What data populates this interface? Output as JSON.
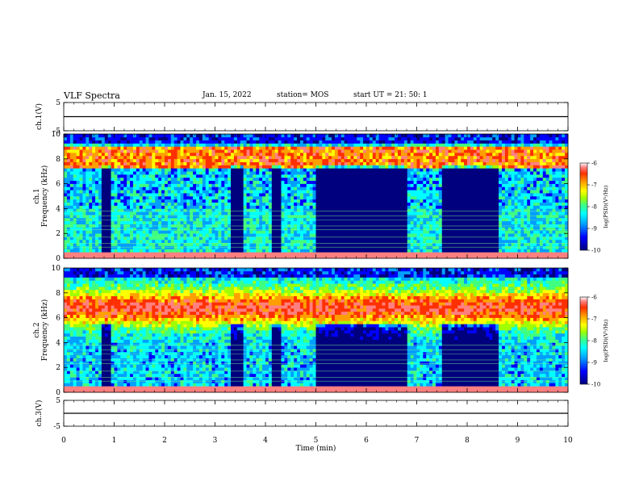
{
  "header": {
    "title": "VLF Spectra",
    "date": "Jan. 15, 2022",
    "station": "station= MOS",
    "start": "start UT =  21: 50: 1"
  },
  "colors": {
    "scale": [
      "#00007f",
      "#0000ff",
      "#00a0ff",
      "#00ffff",
      "#40ff80",
      "#a0ff00",
      "#ffff00",
      "#ffa000",
      "#ff3000",
      "#ff8080",
      "#ffffff"
    ]
  },
  "chart_data": [
    {
      "type": "line",
      "ylabel": "ch.1(V)",
      "ylim": [
        -5,
        5
      ],
      "yticks": [
        "5",
        "-5"
      ],
      "x": [
        0,
        10
      ],
      "values": [
        0,
        0
      ]
    },
    {
      "type": "heatmap",
      "ylabel_top": "ch.1",
      "ylabel": "Frequency (kHz)",
      "ylim": [
        0,
        10
      ],
      "yticks": [
        "0",
        "2",
        "4",
        "6",
        "8",
        "10"
      ],
      "colorbar": {
        "label": "log(PSD)(V²/Hz)",
        "range": [
          -10,
          -6
        ],
        "ticks": [
          "-6",
          "-7",
          "-8",
          "-9",
          "-10"
        ]
      }
    },
    {
      "type": "heatmap",
      "ylabel_top": "ch.2",
      "ylabel": "Frequency (kHz)",
      "ylim": [
        0,
        10
      ],
      "yticks": [
        "0",
        "2",
        "4",
        "6",
        "8",
        "10"
      ],
      "colorbar": {
        "label": "log(PSD)(V²/Hz)",
        "range": [
          -10,
          -6
        ],
        "ticks": [
          "-6",
          "-7",
          "-8",
          "-9",
          "-10"
        ]
      }
    },
    {
      "type": "line",
      "ylabel": "ch.3(V)",
      "ylim": [
        -5,
        5
      ],
      "yticks": [
        "5",
        "-5"
      ],
      "x": [
        0,
        10
      ],
      "values": [
        0,
        0
      ]
    }
  ],
  "xaxis": {
    "label": "Time (min)",
    "xlim": [
      0,
      10
    ],
    "ticks": [
      "0",
      "1",
      "2",
      "3",
      "4",
      "5",
      "6",
      "7",
      "8",
      "9",
      "10"
    ]
  }
}
